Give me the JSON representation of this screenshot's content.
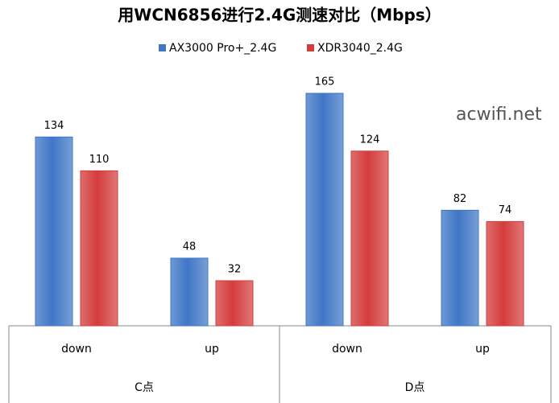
{
  "chart_data": {
    "type": "bar",
    "title": "用WCN6856进行2.4G测速对比（Mbps）",
    "categories": [
      "down",
      "up",
      "down",
      "up"
    ],
    "category_groups": [
      "C点",
      "D点"
    ],
    "series": [
      {
        "name": "AX3000 Pro+_2.4G",
        "color": "#3f76c6",
        "values": [
          134,
          48,
          165,
          82
        ]
      },
      {
        "name": "XDR3040_2.4G",
        "color": "#d43c3c",
        "values": [
          110,
          32,
          124,
          74
        ]
      }
    ],
    "annotation": "acwifi.net"
  }
}
